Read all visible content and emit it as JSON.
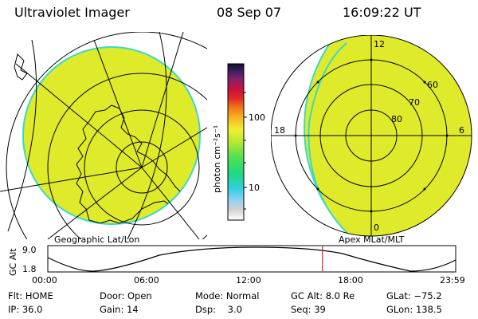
{
  "header": {
    "instrument": "Ultraviolet Imager",
    "date": "08 Sep 07",
    "time": "16:09:22 UT"
  },
  "colors": {
    "fill": "#dfeb2a",
    "edge": "#39d9c8",
    "line": "#000000",
    "marker": "#cc0000"
  },
  "colorbar": {
    "unit_label": "photon cm⁻²s⁻¹",
    "tick_labels": [
      "100",
      "10"
    ],
    "scale": "log"
  },
  "geographic_panel": {
    "label": "Geographic Lat/Lon"
  },
  "apex_panel": {
    "label": "Apex MLat/MLT",
    "mlt_labels": {
      "top": "12",
      "left": "18",
      "right": "6",
      "bottom": "0"
    },
    "mlat_labels": [
      "60",
      "70",
      "80"
    ]
  },
  "altitude_plot": {
    "axis_label": "GC Alt",
    "y_ticks": [
      "9.0",
      "1.8"
    ],
    "x_ticks": [
      "00:00",
      "06:00",
      "12:00",
      "18:00",
      "23:59"
    ],
    "current_time_fraction": 0.6734
  },
  "status": {
    "flt": "Flt: HOME",
    "ip": "IP: 36.0",
    "door": "Door: Open",
    "gain": "Gain: 14",
    "mode": "Mode: Normal",
    "dsp": "Dsp:    3.0",
    "gc_alt": "GC Alt: 8.0 Re",
    "seq": "Seq: 39",
    "glat": "GLat: −75.2",
    "glon": "GLon: 138.5"
  }
}
